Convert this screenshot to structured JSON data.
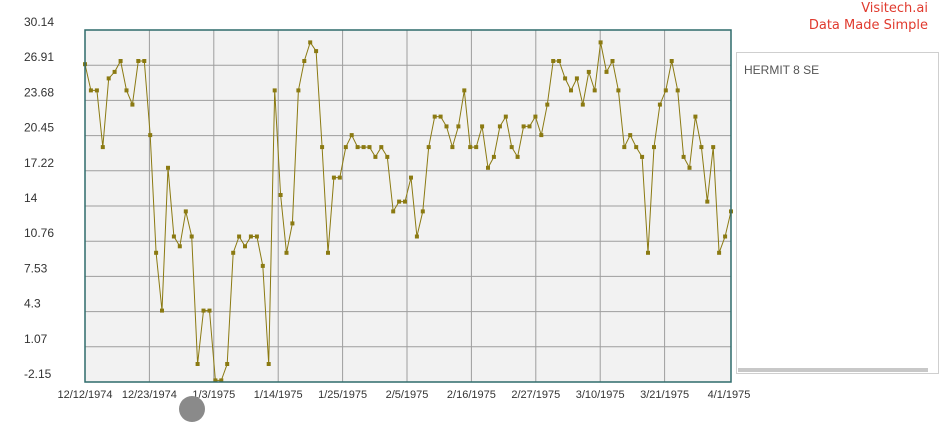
{
  "brand": {
    "line1": "Visitech.ai",
    "line2": "Data Made Simple"
  },
  "colors": {
    "series": "#8b7a12",
    "grid": "#9e9e9e",
    "plot_bg": "#f2f2f2",
    "axis": "#2e6b6b",
    "brand": "#e03a2e"
  },
  "chart_data": {
    "type": "line",
    "title": "",
    "xlabel": "",
    "ylabel": "",
    "ylim": [
      -2.15,
      30.14
    ],
    "yticks": [
      "30.14",
      "26.91",
      "23.68",
      "20.45",
      "17.22",
      "14",
      "10.76",
      "7.53",
      "4.3",
      "1.07",
      "-2.15"
    ],
    "xticks": [
      "12/12/1974",
      "12/23/1974",
      "1/3/1975",
      "1/14/1975",
      "1/25/1975",
      "2/5/1975",
      "2/16/1975",
      "2/27/1975",
      "3/10/1975",
      "3/21/1975",
      "4/1/1975"
    ],
    "grid": true,
    "legend_position": "right",
    "series": [
      {
        "name": "HERMIT 8 SE",
        "values": [
          27,
          24.6,
          24.6,
          19.4,
          25.7,
          26.3,
          27.3,
          24.6,
          23.3,
          27.3,
          27.3,
          20.5,
          9.7,
          4.4,
          17.5,
          11.2,
          10.3,
          13.5,
          11.2,
          -0.5,
          4.4,
          4.4,
          -2.0,
          -2.0,
          -0.5,
          9.7,
          11.2,
          10.3,
          11.2,
          11.2,
          8.5,
          -0.5,
          24.6,
          15.0,
          9.7,
          12.4,
          24.6,
          27.3,
          29.0,
          28.2,
          19.4,
          9.7,
          16.6,
          16.6,
          19.4,
          20.5,
          19.4,
          19.4,
          19.4,
          18.5,
          19.4,
          18.5,
          13.5,
          14.4,
          14.4,
          16.6,
          11.2,
          13.5,
          19.4,
          22.2,
          22.2,
          21.3,
          19.4,
          21.3,
          24.6,
          19.4,
          19.4,
          21.3,
          17.5,
          18.5,
          21.3,
          22.2,
          19.4,
          18.5,
          21.3,
          21.3,
          22.2,
          20.5,
          23.3,
          27.3,
          27.3,
          25.7,
          24.6,
          25.7,
          23.3,
          26.3,
          24.6,
          29.0,
          26.3,
          27.3,
          24.6,
          19.4,
          20.5,
          19.4,
          18.5,
          9.7,
          19.4,
          23.3,
          24.6,
          27.3,
          24.6,
          18.5,
          17.5,
          22.2,
          19.4,
          14.4,
          19.4,
          9.7,
          11.2,
          13.5
        ]
      }
    ]
  }
}
